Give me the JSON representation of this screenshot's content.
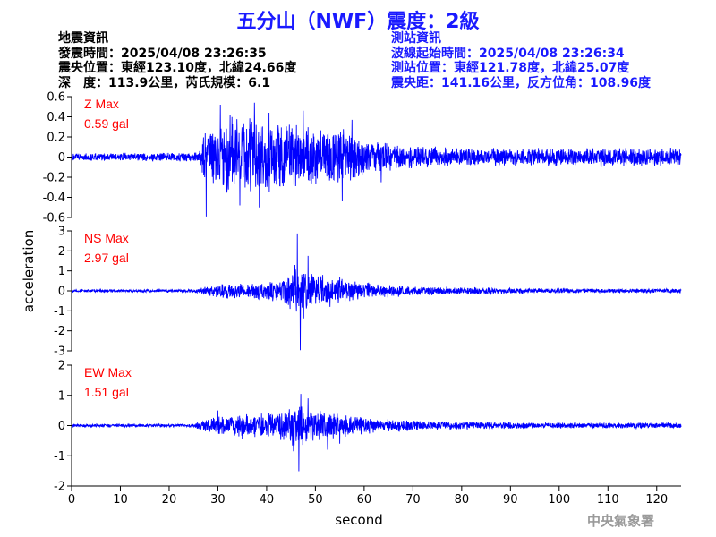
{
  "title": "五分山（NWF）震度：2級",
  "quake_info": {
    "heading": "地震資訊",
    "origin_time": "發震時間：2025/04/08 23:26:35",
    "epicenter": "震央位置：東經123.10度，北緯24.66度",
    "depth_magnitude": "深　度：113.9公里，芮氏規模：6.1"
  },
  "station_info": {
    "heading": "測站資訊",
    "wave_start": "波線起始時間：2025/04/08 23:26:34",
    "location": "測站位置：東經121.78度，北緯25.07度",
    "distance": "震央距：141.16公里，反方位角：108.96度"
  },
  "agency": "中央氣象署",
  "colors": {
    "title": "#1a1aff",
    "trace": "#0000ff",
    "max_label": "#ff0000"
  },
  "chart_data": [
    {
      "type": "line",
      "component": "Z",
      "max_label": "Z Max",
      "max_value": "0.59 gal",
      "ylim": [
        -0.6,
        0.6
      ],
      "yticks": [
        "0.6",
        "0.4",
        "0.2",
        "0",
        "-0.2",
        "-0.4",
        "-0.6"
      ],
      "envelope": {
        "x": [
          0,
          25,
          26,
          27,
          30,
          35,
          40,
          45,
          50,
          55,
          60,
          65,
          70,
          80,
          90,
          100,
          110,
          120,
          125
        ],
        "y": [
          0.04,
          0.05,
          0.07,
          0.28,
          0.38,
          0.45,
          0.4,
          0.35,
          0.33,
          0.3,
          0.22,
          0.15,
          0.12,
          0.1,
          0.1,
          0.1,
          0.1,
          0.1,
          0.1
        ]
      },
      "peaks": [
        [
          27.6,
          -0.59
        ],
        [
          30.5,
          0.52
        ],
        [
          32.5,
          0.42
        ],
        [
          34.5,
          -0.48
        ],
        [
          37.5,
          0.54
        ],
        [
          38.5,
          -0.5
        ],
        [
          40.5,
          0.44
        ],
        [
          47.5,
          0.46
        ],
        [
          55.5,
          -0.44
        ],
        [
          57.5,
          0.37
        ],
        [
          63.5,
          -0.25
        ]
      ]
    },
    {
      "type": "line",
      "component": "NS",
      "max_label": "NS Max",
      "max_value": "2.97 gal",
      "ylim": [
        -3,
        3
      ],
      "yticks": [
        "3",
        "2",
        "1",
        "0",
        "-1",
        "-2",
        "-3"
      ],
      "envelope": {
        "x": [
          0,
          25,
          27,
          30,
          35,
          40,
          44,
          46,
          48,
          52,
          56,
          60,
          65,
          70,
          80,
          90,
          100,
          110,
          120,
          125
        ],
        "y": [
          0.07,
          0.08,
          0.2,
          0.4,
          0.42,
          0.5,
          0.7,
          1.2,
          1.1,
          0.8,
          0.6,
          0.45,
          0.35,
          0.25,
          0.2,
          0.15,
          0.12,
          0.12,
          0.12,
          0.12
        ]
      },
      "peaks": [
        [
          46.3,
          2.87
        ],
        [
          46.9,
          -2.97
        ],
        [
          45.8,
          1.3
        ],
        [
          48.5,
          1.75
        ],
        [
          47.6,
          -1.38
        ],
        [
          44.8,
          -0.9
        ],
        [
          51.5,
          0.8
        ],
        [
          53,
          -0.8
        ],
        [
          55,
          0.7
        ]
      ]
    },
    {
      "type": "line",
      "component": "EW",
      "max_label": "EW Max",
      "max_value": "1.51 gal",
      "ylim": [
        -2,
        2
      ],
      "yticks": [
        "2",
        "1",
        "0",
        "-1",
        "-2"
      ],
      "xlabel": "second",
      "xlim": [
        0,
        125
      ],
      "xticks": [
        "0",
        "10",
        "20",
        "30",
        "40",
        "50",
        "60",
        "70",
        "80",
        "90",
        "100",
        "110",
        "120"
      ],
      "envelope": {
        "x": [
          0,
          25,
          27,
          30,
          35,
          40,
          44,
          46,
          48,
          52,
          56,
          60,
          65,
          70,
          80,
          90,
          100,
          110,
          120,
          125
        ],
        "y": [
          0.05,
          0.06,
          0.22,
          0.35,
          0.38,
          0.45,
          0.55,
          0.75,
          0.7,
          0.5,
          0.4,
          0.3,
          0.25,
          0.18,
          0.14,
          0.12,
          0.1,
          0.1,
          0.1,
          0.1
        ]
      },
      "peaks": [
        [
          46.6,
          -1.51
        ],
        [
          47,
          1.05
        ],
        [
          45.5,
          -0.85
        ],
        [
          48.5,
          0.9
        ],
        [
          52.5,
          -0.8
        ],
        [
          55,
          -0.6
        ],
        [
          30,
          0.5
        ],
        [
          35,
          -0.45
        ]
      ]
    }
  ],
  "shared_ylabel": "acceleration"
}
